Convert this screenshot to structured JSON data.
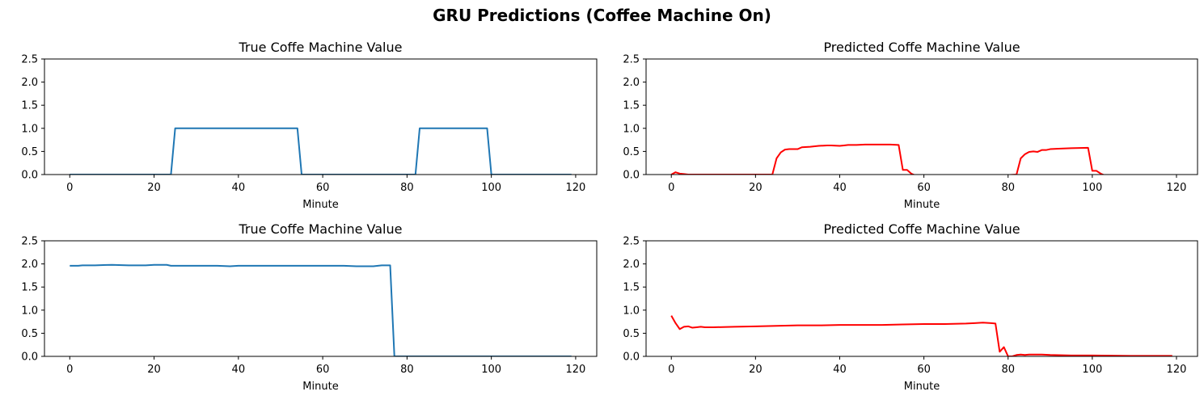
{
  "figure_title": "GRU Predictions (Coffee Machine On)",
  "chart_data": [
    {
      "type": "line",
      "title": "True Coffe Machine Value",
      "xlabel": "Minute",
      "ylabel": "",
      "xlim": [
        -6,
        125
      ],
      "ylim": [
        0,
        2.5
      ],
      "xticks": [
        0,
        20,
        40,
        60,
        80,
        100,
        120
      ],
      "yticks": [
        0.0,
        0.5,
        1.0,
        1.5,
        2.0,
        2.5
      ],
      "xtick_labels": [
        "0",
        "20",
        "40",
        "60",
        "80",
        "100",
        "120"
      ],
      "ytick_labels": [
        "0.0",
        "0.5",
        "1.0",
        "1.5",
        "2.0",
        "2.5"
      ],
      "color": "#1f77b4",
      "series": [
        {
          "x": [
            0,
            24,
            25,
            54,
            55,
            82,
            83,
            99,
            100,
            119
          ],
          "y": [
            0,
            0,
            1,
            1,
            0,
            0,
            1,
            1,
            0,
            0
          ]
        }
      ]
    },
    {
      "type": "line",
      "title": "Predicted Coffe Machine Value",
      "xlabel": "Minute",
      "ylabel": "",
      "xlim": [
        -6,
        125
      ],
      "ylim": [
        0,
        2.5
      ],
      "xticks": [
        0,
        20,
        40,
        60,
        80,
        100,
        120
      ],
      "yticks": [
        0.0,
        0.5,
        1.0,
        1.5,
        2.0,
        2.5
      ],
      "xtick_labels": [
        "0",
        "20",
        "40",
        "60",
        "80",
        "100",
        "120"
      ],
      "ytick_labels": [
        "0.0",
        "0.5",
        "1.0",
        "1.5",
        "2.0",
        "2.5"
      ],
      "color": "#ff0000",
      "series": [
        {
          "x": [
            0,
            1,
            2,
            3,
            4,
            5,
            8,
            12,
            16,
            20,
            23,
            24,
            25,
            26,
            27,
            28,
            30,
            31,
            33,
            35,
            37,
            38,
            40,
            41,
            42,
            44,
            46,
            48,
            50,
            52,
            54,
            55,
            56,
            57,
            58,
            59,
            60,
            61,
            62,
            63,
            64,
            66,
            68,
            70,
            75,
            80,
            82,
            83,
            84,
            85,
            86,
            87,
            88,
            89,
            90,
            92,
            95,
            99,
            100,
            101,
            102,
            103,
            104,
            106,
            108,
            110,
            115,
            119
          ],
          "y": [
            0.0,
            0.05,
            0.02,
            0.01,
            0.0,
            0.0,
            0.0,
            0.0,
            0.0,
            0.0,
            0.0,
            0.0,
            0.35,
            0.48,
            0.54,
            0.55,
            0.55,
            0.59,
            0.6,
            0.62,
            0.63,
            0.63,
            0.62,
            0.63,
            0.64,
            0.64,
            0.65,
            0.65,
            0.65,
            0.65,
            0.64,
            0.1,
            0.1,
            0.02,
            -0.02,
            -0.04,
            -0.04,
            -0.05,
            -0.03,
            -0.05,
            -0.04,
            -0.03,
            -0.03,
            -0.02,
            -0.02,
            -0.01,
            0.0,
            0.35,
            0.44,
            0.49,
            0.5,
            0.49,
            0.53,
            0.53,
            0.55,
            0.56,
            0.57,
            0.58,
            0.08,
            0.08,
            0.02,
            -0.02,
            -0.04,
            -0.04,
            -0.03,
            -0.02,
            -0.02,
            -0.01
          ]
        }
      ]
    },
    {
      "type": "line",
      "title": "True Coffe Machine Value",
      "xlabel": "Minute",
      "ylabel": "",
      "xlim": [
        -6,
        125
      ],
      "ylim": [
        0,
        2.5
      ],
      "xticks": [
        0,
        20,
        40,
        60,
        80,
        100,
        120
      ],
      "yticks": [
        0.0,
        0.5,
        1.0,
        1.5,
        2.0,
        2.5
      ],
      "xtick_labels": [
        "0",
        "20",
        "40",
        "60",
        "80",
        "100",
        "120"
      ],
      "ytick_labels": [
        "0.0",
        "0.5",
        "1.0",
        "1.5",
        "2.0",
        "2.5"
      ],
      "color": "#1f77b4",
      "series": [
        {
          "x": [
            0,
            2,
            3,
            6,
            10,
            14,
            18,
            20,
            23,
            24,
            30,
            35,
            38,
            40,
            45,
            50,
            55,
            60,
            65,
            68,
            72,
            74,
            76,
            77,
            80,
            90,
            100,
            110,
            119
          ],
          "y": [
            1.96,
            1.96,
            1.97,
            1.97,
            1.98,
            1.97,
            1.97,
            1.98,
            1.98,
            1.96,
            1.96,
            1.96,
            1.95,
            1.96,
            1.96,
            1.96,
            1.96,
            1.96,
            1.96,
            1.95,
            1.95,
            1.97,
            1.97,
            0.0,
            0.0,
            0.0,
            0.0,
            0.0,
            0.0
          ]
        }
      ]
    },
    {
      "type": "line",
      "title": "Predicted Coffe Machine Value",
      "xlabel": "Minute",
      "ylabel": "",
      "xlim": [
        -6,
        125
      ],
      "ylim": [
        0,
        2.5
      ],
      "xticks": [
        0,
        20,
        40,
        60,
        80,
        100,
        120
      ],
      "yticks": [
        0.0,
        0.5,
        1.0,
        1.5,
        2.0,
        2.5
      ],
      "xtick_labels": [
        "0",
        "20",
        "40",
        "60",
        "80",
        "100",
        "120"
      ],
      "ytick_labels": [
        "0.0",
        "0.5",
        "1.0",
        "1.5",
        "2.0",
        "2.5"
      ],
      "color": "#ff0000",
      "series": [
        {
          "x": [
            0,
            1,
            2,
            3,
            4,
            5,
            6,
            7,
            8,
            10,
            15,
            20,
            25,
            30,
            35,
            40,
            45,
            50,
            55,
            60,
            65,
            70,
            72,
            74,
            76,
            77,
            78,
            79,
            80,
            81,
            82,
            83,
            84,
            85,
            86,
            88,
            90,
            95,
            100,
            110,
            119
          ],
          "y": [
            0.88,
            0.72,
            0.59,
            0.64,
            0.65,
            0.62,
            0.63,
            0.64,
            0.63,
            0.63,
            0.64,
            0.65,
            0.66,
            0.67,
            0.67,
            0.68,
            0.68,
            0.68,
            0.69,
            0.7,
            0.7,
            0.71,
            0.72,
            0.73,
            0.72,
            0.71,
            0.1,
            0.2,
            0.0,
            0.0,
            0.03,
            0.04,
            0.03,
            0.04,
            0.04,
            0.04,
            0.03,
            0.02,
            0.02,
            0.01,
            0.01
          ]
        }
      ]
    }
  ]
}
